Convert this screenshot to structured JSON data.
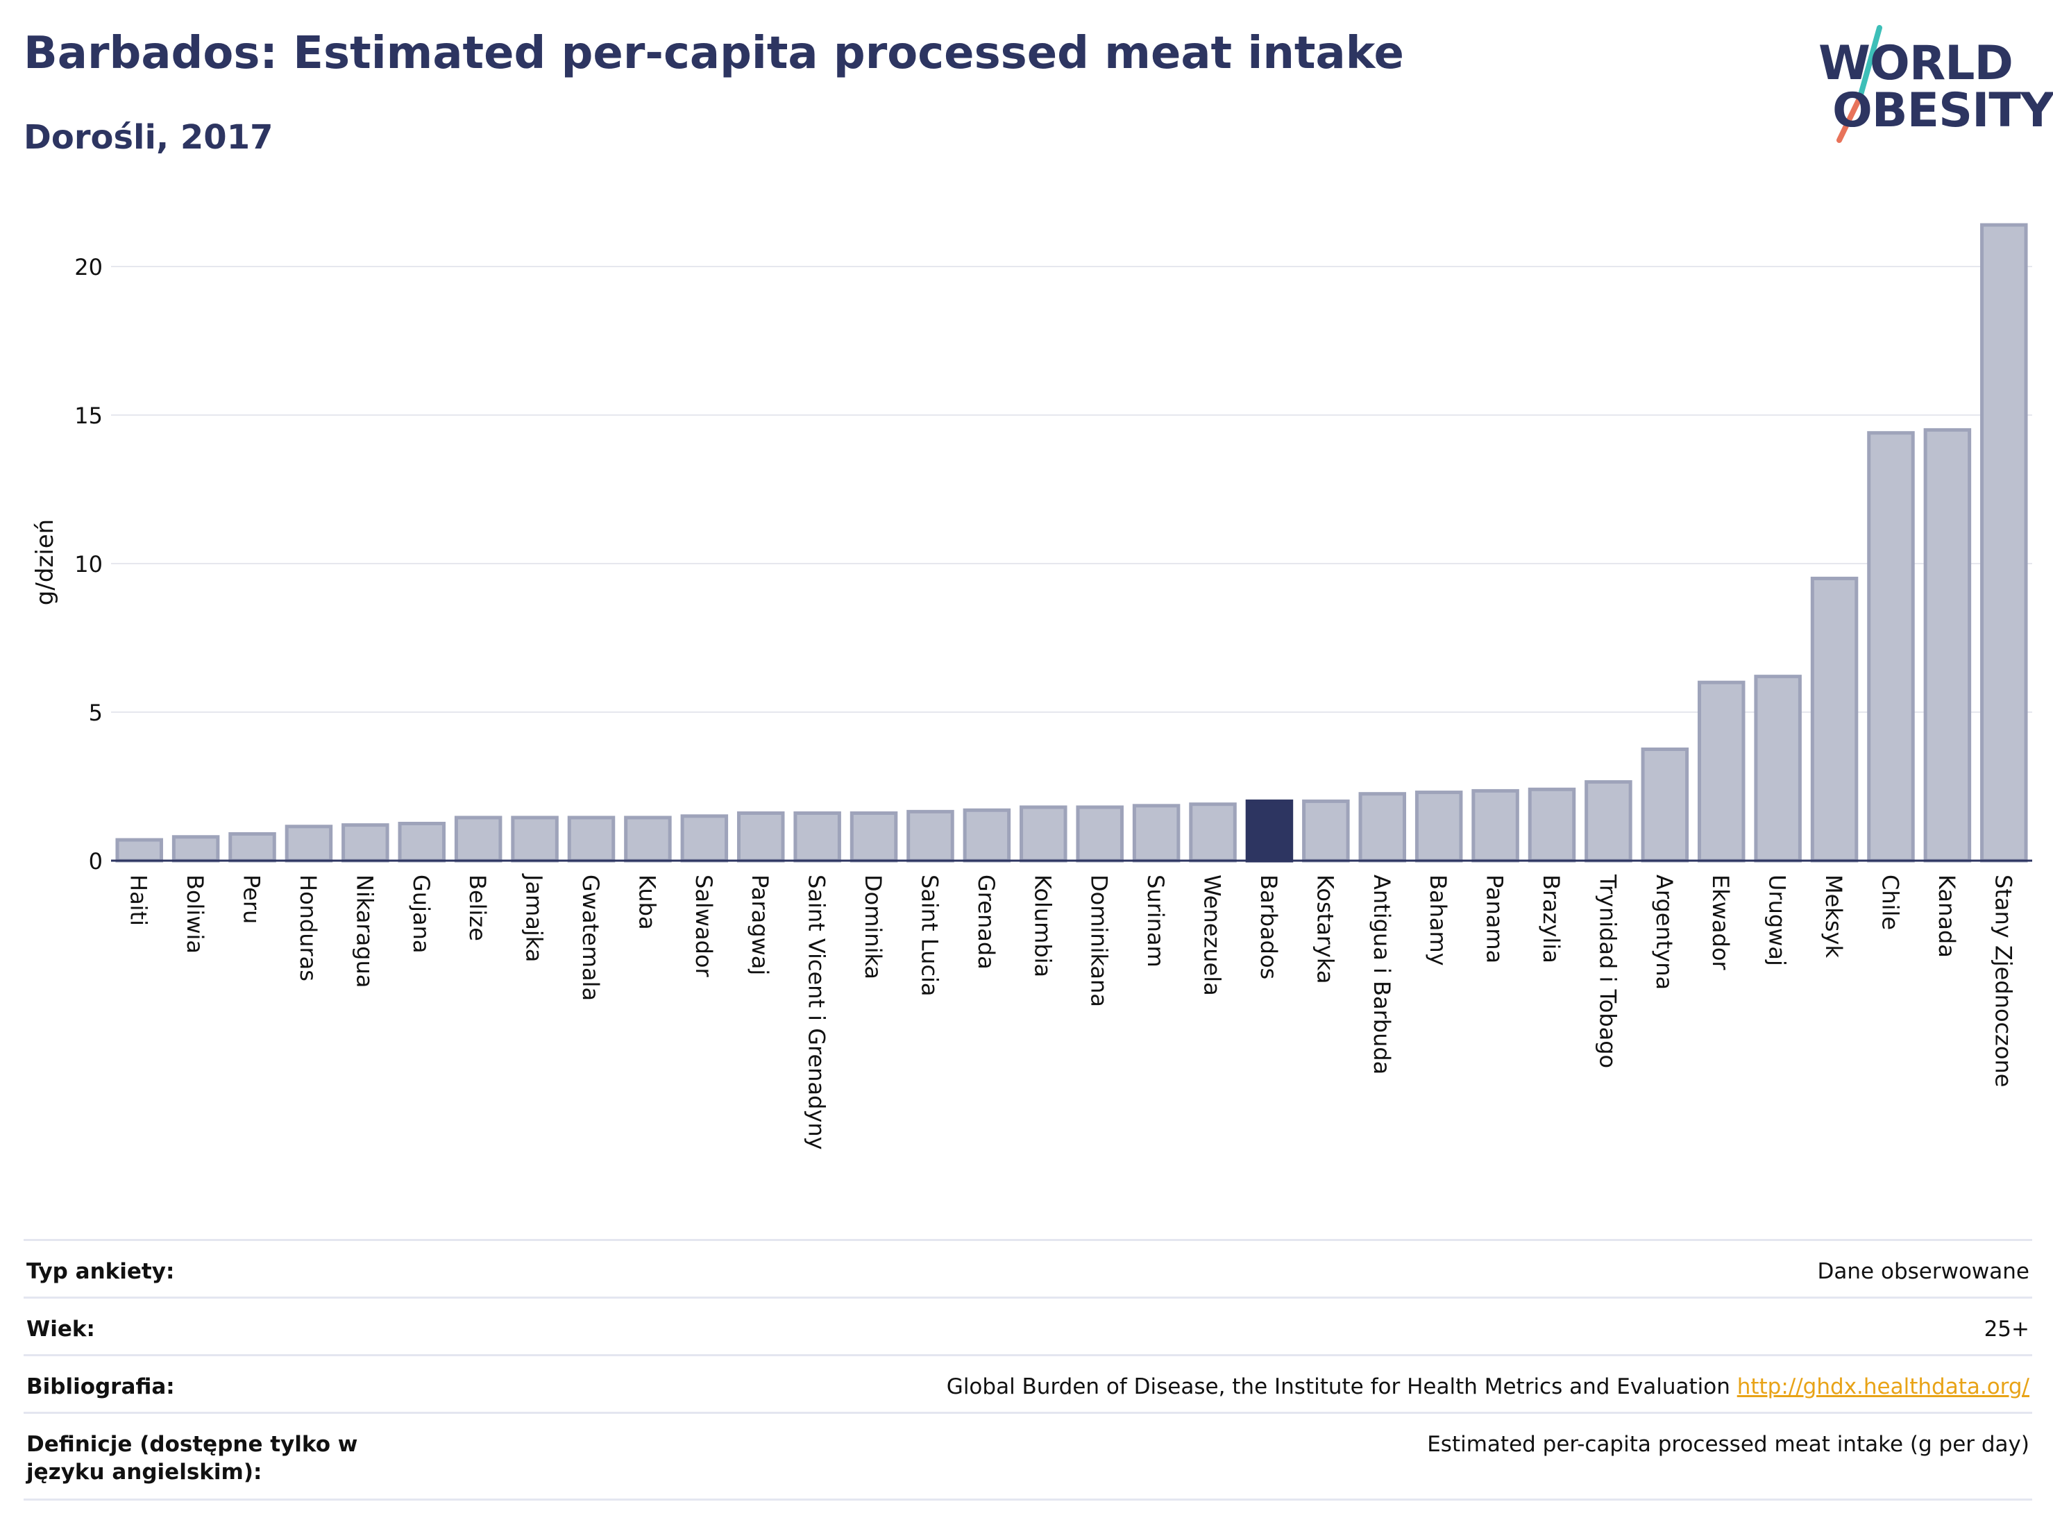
{
  "header": {
    "title": "Barbados: Estimated per-capita processed meat intake",
    "subtitle": "Dorośli, 2017"
  },
  "logo": {
    "line1": "WORLD",
    "line2": "OBESITY"
  },
  "colors": {
    "bar": "#bcc0cf",
    "bar_stroke": "#9ea3ba",
    "highlight": "#2d3561",
    "text": "#2d3561"
  },
  "chart_data": {
    "type": "bar",
    "ylabel": "g/dzień",
    "ylim": [
      0,
      22
    ],
    "yticks": [
      0,
      5,
      10,
      15,
      20
    ],
    "highlight": "Barbados",
    "categories": [
      "Haiti",
      "Boliwia",
      "Peru",
      "Honduras",
      "Nikaragua",
      "Gujana",
      "Belize",
      "Jamajka",
      "Gwatemala",
      "Kuba",
      "Salwador",
      "Paragwaj",
      "Saint Vicent i Grenadyny",
      "Dominika",
      "Saint Lucia",
      "Grenada",
      "Kolumbia",
      "Dominikana",
      "Surinam",
      "Wenezuela",
      "Barbados",
      "Kostaryka",
      "Antigua i Barbuda",
      "Bahamy",
      "Panama",
      "Brazylia",
      "Trynidad i Tobago",
      "Argentyna",
      "Ekwador",
      "Urugwaj",
      "Meksyk",
      "Chile",
      "Kanada",
      "Stany Zjednoczone"
    ],
    "values": [
      0.7,
      0.8,
      0.9,
      1.15,
      1.2,
      1.25,
      1.45,
      1.45,
      1.45,
      1.45,
      1.5,
      1.6,
      1.6,
      1.6,
      1.65,
      1.7,
      1.8,
      1.8,
      1.85,
      1.9,
      2.0,
      2.0,
      2.25,
      2.3,
      2.35,
      2.4,
      2.65,
      3.75,
      6.0,
      6.2,
      9.5,
      14.4,
      14.5,
      21.4
    ]
  },
  "info": {
    "rows": [
      {
        "key": "Typ ankiety:",
        "value": "Dane obserwowane"
      },
      {
        "key": "Wiek:",
        "value": "25+"
      },
      {
        "key": "Bibliografia:",
        "value": "Global Burden of Disease, the Institute for Health Metrics and Evaluation",
        "link": "http://ghdx.healthdata.org/"
      },
      {
        "key": "Definicje (dostępne tylko w języku angielskim):",
        "value": "Estimated per-capita processed meat intake (g per day)"
      }
    ]
  }
}
